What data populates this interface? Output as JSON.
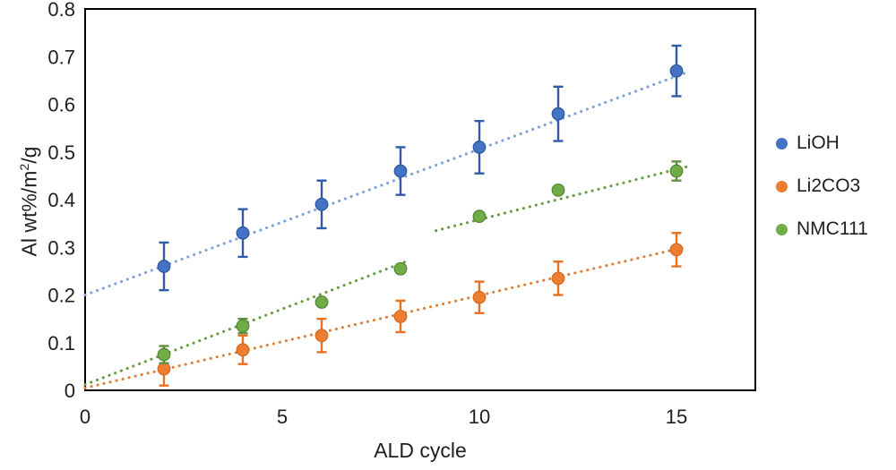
{
  "figure": {
    "background": "#ffffff",
    "text_color": "#1f1f1f",
    "border_color": "#000000"
  },
  "chart_data": {
    "type": "scatter",
    "title": "",
    "xlabel": "ALD cycle",
    "ylabel": "Al wt%/m2/g",
    "ylabel_parts": {
      "pre": "Al wt%/m",
      "sup": "2",
      "post": "/g"
    },
    "xlim": [
      0,
      17
    ],
    "ylim": [
      0,
      0.8
    ],
    "grid": false,
    "legend_position": "right",
    "x_ticks": [
      {
        "value": 0,
        "label": "0"
      },
      {
        "value": 5,
        "label": "5"
      },
      {
        "value": 10,
        "label": "10"
      },
      {
        "value": 15,
        "label": "15"
      }
    ],
    "y_ticks": [
      {
        "value": 0,
        "label": "0"
      },
      {
        "value": 0.1,
        "label": "0.1"
      },
      {
        "value": 0.2,
        "label": "0.2"
      },
      {
        "value": 0.3,
        "label": "0.3"
      },
      {
        "value": 0.4,
        "label": "0.4"
      },
      {
        "value": 0.5,
        "label": "0.5"
      },
      {
        "value": 0.6,
        "label": "0.6"
      },
      {
        "value": 0.7,
        "label": "0.7"
      },
      {
        "value": 0.8,
        "label": "0.8"
      }
    ],
    "x": [
      2,
      4,
      6,
      8,
      10,
      12,
      15
    ],
    "series": [
      {
        "name": "LiOH",
        "color": "#4472C4",
        "marker_edge": "#2F5597",
        "error_color": "#2F5CA8",
        "trend_color": "#7CA1DB",
        "values": [
          0.26,
          0.33,
          0.39,
          0.46,
          0.51,
          0.58,
          0.67
        ],
        "errors": [
          0.05,
          0.05,
          0.05,
          0.05,
          0.055,
          0.057,
          0.053
        ],
        "trend_segments": [
          {
            "x1": 0,
            "y1": 0.2,
            "x2": 15.2,
            "y2": 0.665
          }
        ]
      },
      {
        "name": "Li2CO3",
        "color": "#ED7D31",
        "marker_edge": "#D26A1E",
        "error_color": "#E8701F",
        "trend_color": "#E07E35",
        "values": [
          0.045,
          0.085,
          0.115,
          0.155,
          0.195,
          0.235,
          0.295
        ],
        "errors": [
          0.035,
          0.03,
          0.035,
          0.033,
          0.033,
          0.035,
          0.035
        ],
        "trend_segments": [
          {
            "x1": 0,
            "y1": 0.005,
            "x2": 15.2,
            "y2": 0.3
          }
        ]
      },
      {
        "name": "NMC111",
        "color": "#70AD47",
        "marker_edge": "#548235",
        "error_color": "#5E9139",
        "trend_color": "#669C40",
        "values": [
          0.075,
          0.135,
          0.185,
          0.255,
          0.365,
          0.42,
          0.46
        ],
        "errors": [
          0.018,
          0.015,
          0,
          0,
          0,
          0,
          0.02
        ],
        "trend_segments": [
          {
            "x1": 0,
            "y1": 0.012,
            "x2": 8.2,
            "y2": 0.272
          },
          {
            "x1": 8.9,
            "y1": 0.335,
            "x2": 15.4,
            "y2": 0.472
          }
        ]
      }
    ]
  }
}
